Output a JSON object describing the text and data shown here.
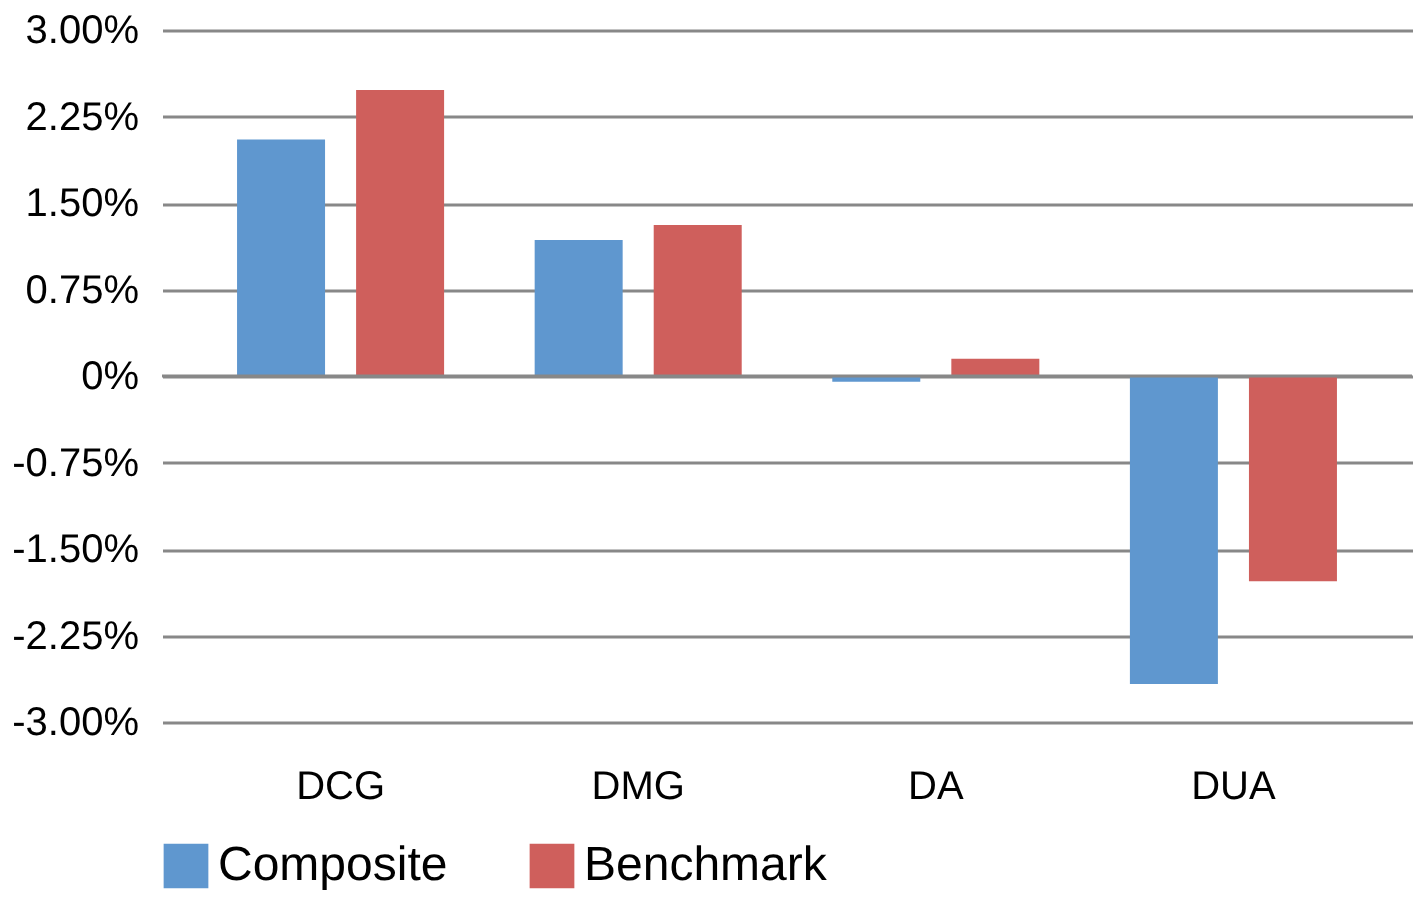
{
  "chart_data": {
    "type": "bar",
    "categories": [
      "DCG",
      "DMG",
      "DA",
      "DUA"
    ],
    "series": [
      {
        "name": "Composite",
        "color": "#5f97cf",
        "values": [
          2.05,
          1.18,
          -0.05,
          -2.67
        ]
      },
      {
        "name": "Benchmark",
        "color": "#cf5f5c",
        "values": [
          2.48,
          1.31,
          0.15,
          -1.78
        ]
      }
    ],
    "ylim": [
      -3,
      3
    ],
    "yticks": [
      {
        "value": -3,
        "label": "-3.00%"
      },
      {
        "value": -2.25,
        "label": "-2.25%"
      },
      {
        "value": -1.5,
        "label": "-1.50%"
      },
      {
        "value": -0.75,
        "label": "-0.75%"
      },
      {
        "value": 0,
        "label": "0%"
      },
      {
        "value": 0.75,
        "label": "0.75%"
      },
      {
        "value": 1.5,
        "label": "1.50%"
      },
      {
        "value": 2.25,
        "label": "2.25%"
      },
      {
        "value": 3,
        "label": "3.00%"
      }
    ],
    "grid": "y",
    "legend": "bottom"
  }
}
